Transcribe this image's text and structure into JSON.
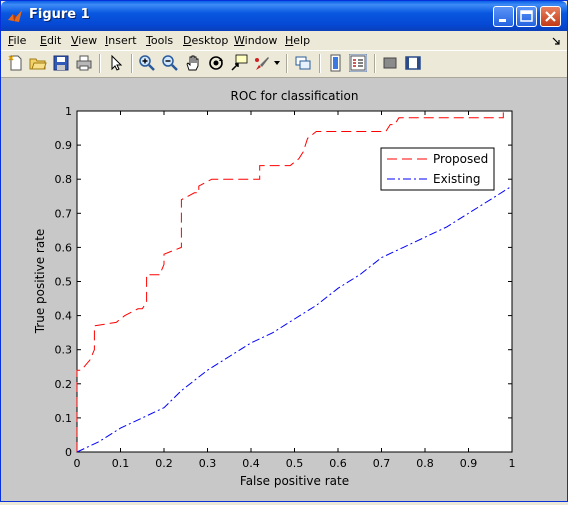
{
  "window": {
    "title": "Figure 1",
    "controls": [
      "minimize",
      "maximize",
      "close"
    ]
  },
  "menu": {
    "items": [
      {
        "first": "F",
        "rest": "ile"
      },
      {
        "first": "E",
        "rest": "dit"
      },
      {
        "first": "V",
        "rest": "iew"
      },
      {
        "first": "I",
        "rest": "nsert"
      },
      {
        "first": "T",
        "rest": "ools"
      },
      {
        "first": "D",
        "rest": "esktop"
      },
      {
        "first": "W",
        "rest": "indow"
      },
      {
        "first": "H",
        "rest": "elp"
      }
    ]
  },
  "toolbar": {
    "icons": [
      "new-figure-icon",
      "open-file-icon",
      "save-icon",
      "print-icon",
      "pointer-icon",
      "zoom-in-icon",
      "zoom-out-icon",
      "pan-hand-icon",
      "rotate-3d-icon",
      "data-cursor-icon",
      "brush-icon",
      "link-plot-icon",
      "colorbar-icon",
      "legend-icon",
      "hide-plot-tools-icon",
      "show-plot-tools-icon"
    ]
  },
  "chart_data": {
    "type": "line",
    "title": "ROC for classification",
    "xlabel": "False positive rate",
    "ylabel": "True positive rate",
    "xlim": [
      0,
      1
    ],
    "ylim": [
      0,
      1
    ],
    "xticks": [
      "0",
      "0.1",
      "0.2",
      "0.3",
      "0.4",
      "0.5",
      "0.6",
      "0.7",
      "0.8",
      "0.9",
      "1"
    ],
    "yticks": [
      "0",
      "0.1",
      "0.2",
      "0.3",
      "0.4",
      "0.5",
      "0.6",
      "0.7",
      "0.8",
      "0.9",
      "1"
    ],
    "legend_position": "top-right",
    "series": [
      {
        "name": "Proposed",
        "color": "#ff0000",
        "dash": "long-dash",
        "x": [
          0,
          0,
          0.01,
          0.03,
          0.04,
          0.04,
          0.09,
          0.11,
          0.14,
          0.15,
          0.16,
          0.16,
          0.18,
          0.19,
          0.2,
          0.2,
          0.24,
          0.24,
          0.27,
          0.28,
          0.28,
          0.31,
          0.42,
          0.42,
          0.49,
          0.51,
          0.52,
          0.53,
          0.55,
          0.56,
          0.71,
          0.72,
          0.73,
          0.74,
          0.78,
          0.81,
          0.93,
          0.94,
          0.98,
          0.98
        ],
        "y": [
          0,
          0.24,
          0.24,
          0.27,
          0.3,
          0.37,
          0.38,
          0.4,
          0.42,
          0.42,
          0.44,
          0.52,
          0.52,
          0.52,
          0.55,
          0.58,
          0.6,
          0.74,
          0.76,
          0.76,
          0.78,
          0.8,
          0.8,
          0.84,
          0.84,
          0.86,
          0.88,
          0.92,
          0.94,
          0.94,
          0.94,
          0.96,
          0.96,
          0.98,
          0.98,
          0.98,
          0.98,
          0.98,
          0.98,
          1
        ]
      },
      {
        "name": "Existing",
        "color": "#0000ff",
        "dash": "dash-dot",
        "x": [
          0,
          0.05,
          0.1,
          0.15,
          0.2,
          0.24,
          0.3,
          0.35,
          0.4,
          0.45,
          0.5,
          0.55,
          0.6,
          0.65,
          0.7,
          0.75,
          0.8,
          0.85,
          0.9,
          0.95,
          1
        ],
        "y": [
          0,
          0.03,
          0.07,
          0.1,
          0.13,
          0.18,
          0.24,
          0.28,
          0.32,
          0.35,
          0.39,
          0.43,
          0.48,
          0.52,
          0.57,
          0.6,
          0.63,
          0.66,
          0.7,
          0.74,
          0.78
        ]
      }
    ]
  }
}
